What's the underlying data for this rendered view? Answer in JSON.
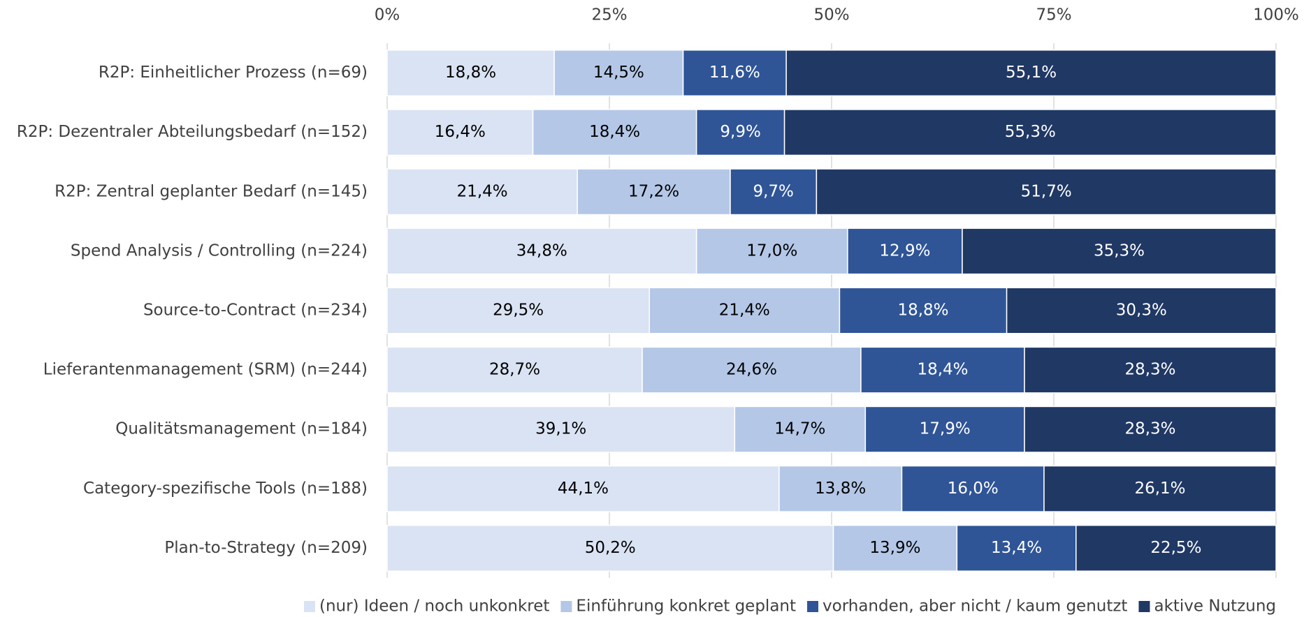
{
  "chart_data": {
    "type": "stacked_barh",
    "categories": [
      "R2P: Einheitlicher Prozess (n=69)",
      "R2P: Dezentraler Abteilungsbedarf (n=152)",
      "R2P: Zentral geplanter Bedarf (n=145)",
      "Spend Analysis / Controlling (n=224)",
      "Source-to-Contract (n=234)",
      "Lieferantenmanagement (SRM) (n=244)",
      "Qualitätsmanagement (n=184)",
      "Category-spezifische Tools (n=188)",
      "Plan-to-Strategy (n=209)"
    ],
    "series": [
      {
        "name": "(nur) Ideen / noch unkonkret",
        "color": "#dae3f3",
        "label_color": "#000000",
        "values": [
          18.8,
          16.4,
          21.4,
          34.8,
          29.5,
          28.7,
          39.1,
          44.1,
          50.2
        ],
        "value_labels": [
          "18,8%",
          "16,4%",
          "21,4%",
          "34,8%",
          "29,5%",
          "28,7%",
          "39,1%",
          "44,1%",
          "50,2%"
        ]
      },
      {
        "name": "Einführung konkret geplant",
        "color": "#b4c7e7",
        "label_color": "#000000",
        "values": [
          14.5,
          18.4,
          17.2,
          17.0,
          21.4,
          24.6,
          14.7,
          13.8,
          13.9
        ],
        "value_labels": [
          "14,5%",
          "18,4%",
          "17,2%",
          "17,0%",
          "21,4%",
          "24,6%",
          "14,7%",
          "13,8%",
          "13,9%"
        ]
      },
      {
        "name": "vorhanden, aber nicht / kaum genutzt",
        "color": "#2f5597",
        "label_color": "#ffffff",
        "values": [
          11.6,
          9.9,
          9.7,
          12.9,
          18.8,
          18.4,
          17.9,
          16.0,
          13.4
        ],
        "value_labels": [
          "11,6%",
          "9,9%",
          "9,7%",
          "12,9%",
          "18,8%",
          "18,4%",
          "17,9%",
          "16,0%",
          "13,4%"
        ]
      },
      {
        "name": "aktive Nutzung",
        "color": "#203864",
        "label_color": "#ffffff",
        "values": [
          55.1,
          55.3,
          51.7,
          35.3,
          30.3,
          28.3,
          28.3,
          26.1,
          22.5
        ],
        "value_labels": [
          "55,1%",
          "55,3%",
          "51,7%",
          "35,3%",
          "30,3%",
          "28,3%",
          "28,3%",
          "26,1%",
          "22,5%"
        ]
      }
    ],
    "xlim": [
      0,
      100
    ],
    "xticks": [
      {
        "value": 0,
        "label": "0%"
      },
      {
        "value": 25,
        "label": "25%"
      },
      {
        "value": 50,
        "label": "50%"
      },
      {
        "value": 75,
        "label": "75%"
      },
      {
        "value": 100,
        "label": "100%"
      }
    ],
    "grid": true,
    "legend": "bottom"
  }
}
